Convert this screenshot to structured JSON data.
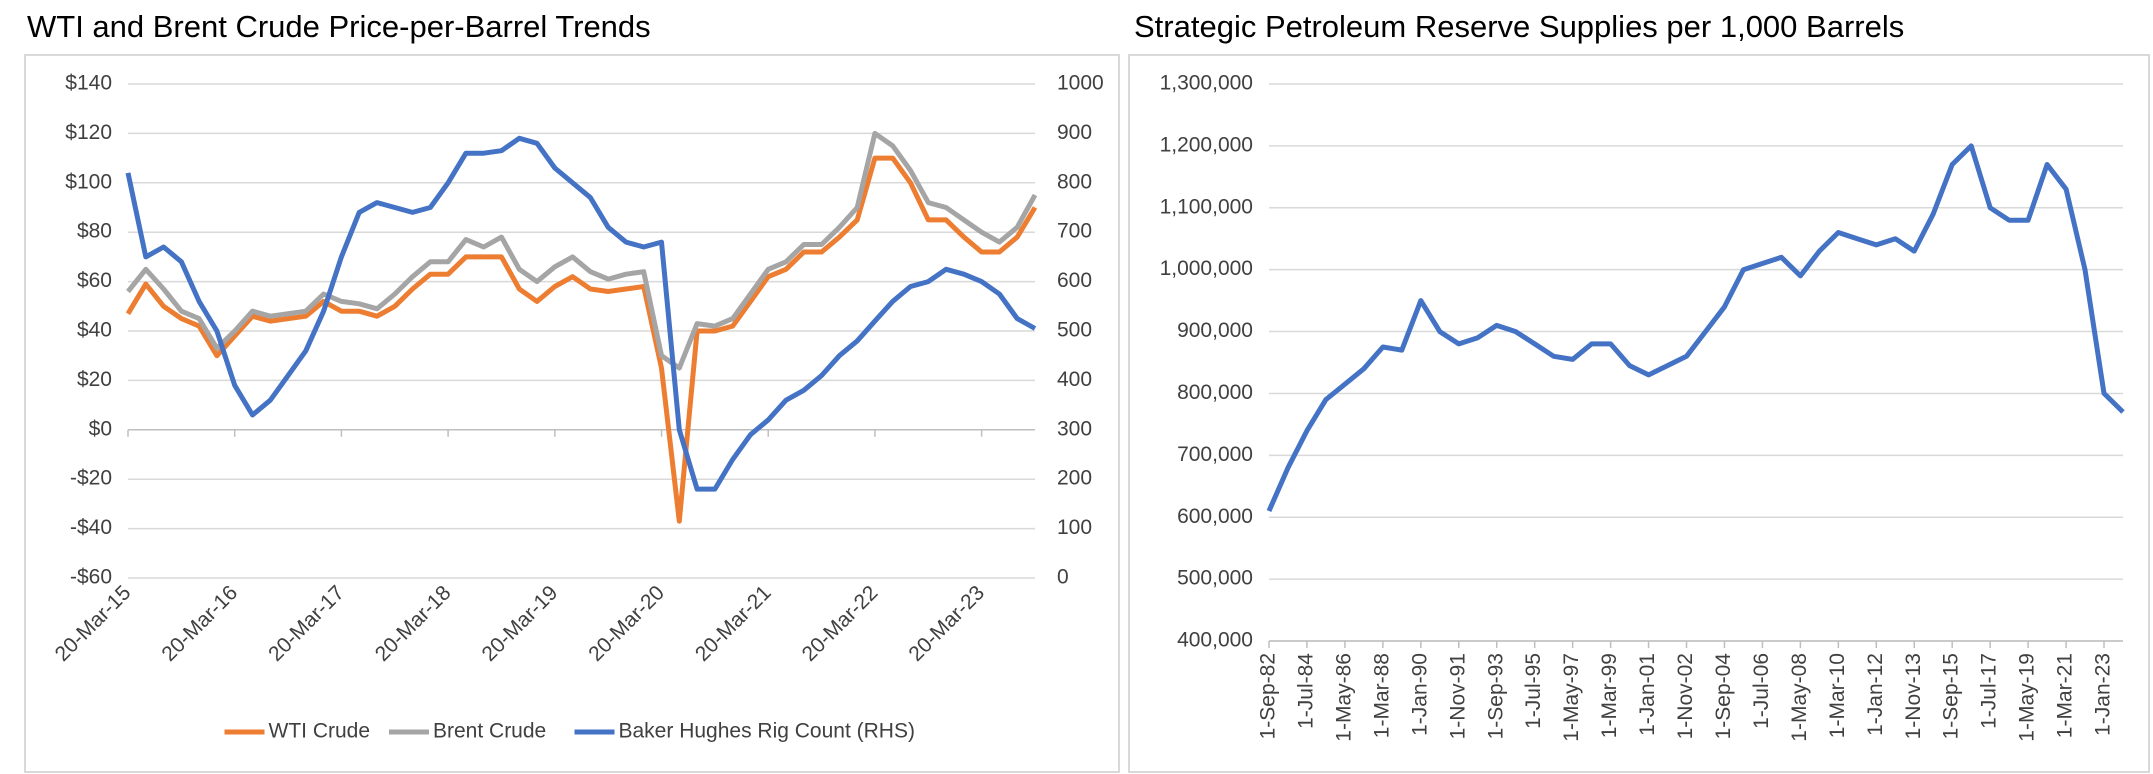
{
  "chart_data": [
    {
      "type": "line",
      "title": "WTI and Brent Crude Price-per-Barrel Trends",
      "categories": [
        "20-Mar-15",
        null,
        null,
        null,
        null,
        null,
        "20-Mar-16",
        null,
        null,
        null,
        null,
        null,
        "20-Mar-17",
        null,
        null,
        null,
        null,
        null,
        "20-Mar-18",
        null,
        null,
        null,
        null,
        null,
        "20-Mar-19",
        null,
        null,
        null,
        null,
        null,
        "20-Mar-20",
        null,
        null,
        null,
        null,
        null,
        "20-Mar-21",
        null,
        null,
        null,
        null,
        null,
        "20-Mar-22",
        null,
        null,
        null,
        null,
        null,
        "20-Mar-23",
        null,
        null,
        null
      ],
      "series": [
        {
          "name": "WTI Crude",
          "color": "#ed7d31",
          "values": [
            47,
            59,
            50,
            45,
            42,
            30,
            38,
            46,
            44,
            45,
            46,
            52,
            48,
            48,
            46,
            50,
            57,
            63,
            63,
            70,
            70,
            70,
            57,
            52,
            58,
            62,
            57,
            56,
            57,
            58,
            25,
            -37,
            40,
            40,
            42,
            52,
            62,
            65,
            72,
            72,
            78,
            85,
            110,
            110,
            100,
            85,
            85,
            78,
            72,
            72,
            78,
            90
          ]
        },
        {
          "name": "Brent Crude",
          "color": "#a5a5a5",
          "values": [
            56,
            65,
            57,
            48,
            45,
            33,
            40,
            48,
            46,
            47,
            48,
            55,
            52,
            51,
            49,
            55,
            62,
            68,
            68,
            77,
            74,
            78,
            65,
            60,
            66,
            70,
            64,
            61,
            63,
            64,
            30,
            25,
            43,
            42,
            45,
            55,
            65,
            68,
            75,
            75,
            82,
            90,
            120,
            115,
            105,
            92,
            90,
            85,
            80,
            76,
            82,
            95
          ]
        },
        {
          "name": "Baker Hughes Rig Count (RHS)",
          "color": "#4472c4",
          "axis": "y2",
          "values": [
            820,
            650,
            670,
            640,
            560,
            500,
            390,
            330,
            360,
            410,
            460,
            540,
            650,
            740,
            760,
            750,
            740,
            750,
            800,
            860,
            860,
            865,
            890,
            880,
            830,
            800,
            770,
            710,
            680,
            670,
            680,
            300,
            180,
            180,
            240,
            290,
            320,
            360,
            380,
            410,
            450,
            480,
            520,
            560,
            590,
            600,
            625,
            615,
            600,
            575,
            525,
            505
          ]
        }
      ],
      "ylim": [
        -60,
        140
      ],
      "yticks": [
        {
          "value": -60,
          "label": "-$60"
        },
        {
          "value": -40,
          "label": "-$40"
        },
        {
          "value": -20,
          "label": "-$20"
        },
        {
          "value": 0,
          "label": "$0"
        },
        {
          "value": 20,
          "label": "$20"
        },
        {
          "value": 40,
          "label": "$40"
        },
        {
          "value": 60,
          "label": "$60"
        },
        {
          "value": 80,
          "label": "$80"
        },
        {
          "value": 100,
          "label": "$100"
        },
        {
          "value": 120,
          "label": "$120"
        },
        {
          "value": 140,
          "label": "$140"
        }
      ],
      "y2lim": [
        0,
        1000
      ],
      "y2ticks": [
        0,
        100,
        200,
        300,
        400,
        500,
        600,
        700,
        800,
        900,
        1000
      ],
      "grid": true,
      "legend": "bottom"
    },
    {
      "type": "line",
      "title": "Strategic Petroleum Reserve Supplies per 1,000 Barrels",
      "categories": [
        "1-Sep-82",
        null,
        "1-Jul-84",
        null,
        "1-May-86",
        null,
        "1-Mar-88",
        null,
        "1-Jan-90",
        null,
        "1-Nov-91",
        null,
        "1-Sep-93",
        null,
        "1-Jul-95",
        null,
        "1-May-97",
        null,
        "1-Mar-99",
        null,
        "1-Jan-01",
        null,
        "1-Nov-02",
        null,
        "1-Sep-04",
        null,
        "1-Jul-06",
        null,
        "1-May-08",
        null,
        "1-Mar-10",
        null,
        "1-Jan-12",
        null,
        "1-Nov-13",
        null,
        "1-Sep-15",
        null,
        "1-Jul-17",
        null,
        "1-May-19",
        null,
        "1-Mar-21",
        null,
        "1-Jan-23",
        null
      ],
      "values": [
        610000,
        680000,
        740000,
        790000,
        815000,
        840000,
        875000,
        870000,
        950000,
        900000,
        880000,
        890000,
        910000,
        900000,
        880000,
        860000,
        855000,
        880000,
        880000,
        845000,
        830000,
        845000,
        860000,
        900000,
        940000,
        1000000,
        1010000,
        1020000,
        990000,
        1030000,
        1060000,
        1050000,
        1040000,
        1050000,
        1030000,
        1090000,
        1170000,
        1200000,
        1100000,
        1080000,
        1080000,
        1170000,
        1130000,
        1000000,
        800000,
        770000
      ],
      "color": "#4472c4",
      "ylim": [
        400000,
        1300000
      ],
      "yticks": [
        {
          "value": 400000,
          "label": "400,000"
        },
        {
          "value": 500000,
          "label": "500,000"
        },
        {
          "value": 600000,
          "label": "600,000"
        },
        {
          "value": 700000,
          "label": "700,000"
        },
        {
          "value": 800000,
          "label": "800,000"
        },
        {
          "value": 900000,
          "label": "900,000"
        },
        {
          "value": 1000000,
          "label": "1,000,000"
        },
        {
          "value": 1100000,
          "label": "1,100,000"
        },
        {
          "value": 1200000,
          "label": "1,200,000"
        },
        {
          "value": 1300000,
          "label": "1,300,000"
        }
      ],
      "grid": true
    }
  ]
}
